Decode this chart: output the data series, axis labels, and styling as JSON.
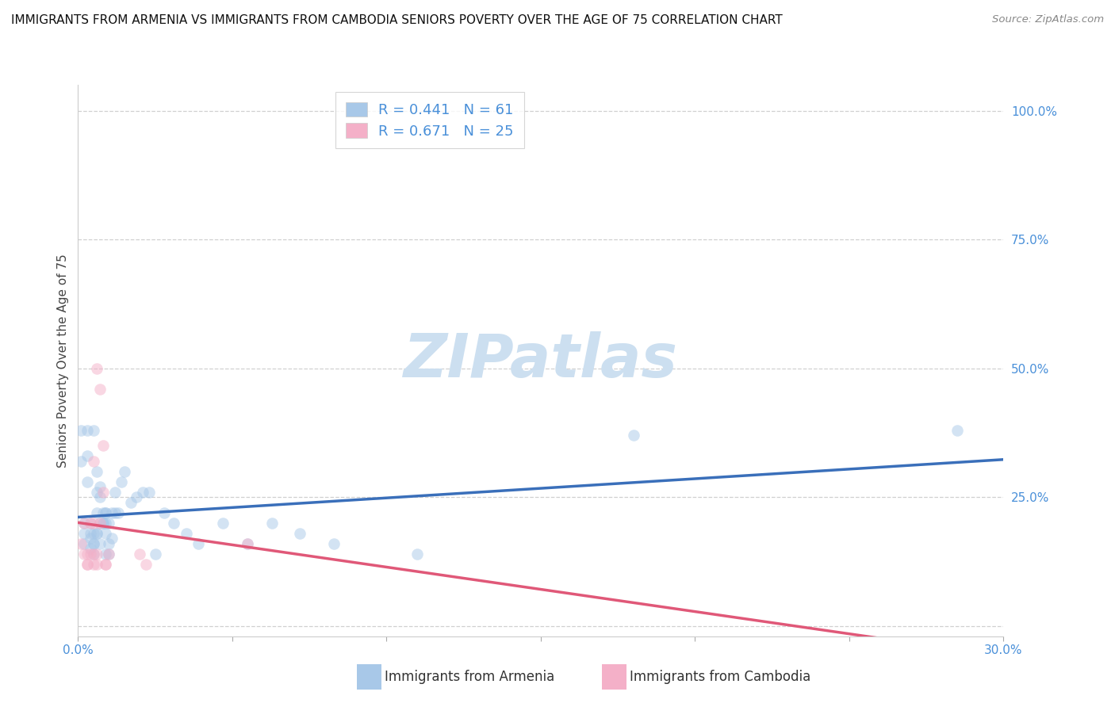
{
  "title": "IMMIGRANTS FROM ARMENIA VS IMMIGRANTS FROM CAMBODIA SENIORS POVERTY OVER THE AGE OF 75 CORRELATION CHART",
  "source": "Source: ZipAtlas.com",
  "ylabel": "Seniors Poverty Over the Age of 75",
  "xlabel_armenia": "Immigrants from Armenia",
  "xlabel_cambodia": "Immigrants from Cambodia",
  "armenia_color": "#a8c8e8",
  "cambodia_color": "#f4b0c8",
  "armenia_line_color": "#3a6fba",
  "cambodia_line_color": "#e05878",
  "R_armenia": 0.441,
  "N_armenia": 61,
  "R_cambodia": 0.671,
  "N_cambodia": 25,
  "xlim": [
    0.0,
    0.3
  ],
  "ylim": [
    -0.02,
    1.05
  ],
  "xticks": [
    0.0,
    0.05,
    0.1,
    0.15,
    0.2,
    0.25,
    0.3
  ],
  "yticks": [
    0.0,
    0.25,
    0.5,
    0.75,
    1.0
  ],
  "watermark": "ZIPatlas",
  "armenia_scatter": [
    [
      0.001,
      0.38
    ],
    [
      0.001,
      0.32
    ],
    [
      0.002,
      0.18
    ],
    [
      0.002,
      0.2
    ],
    [
      0.002,
      0.16
    ],
    [
      0.003,
      0.38
    ],
    [
      0.003,
      0.33
    ],
    [
      0.003,
      0.28
    ],
    [
      0.004,
      0.2
    ],
    [
      0.004,
      0.18
    ],
    [
      0.004,
      0.15
    ],
    [
      0.004,
      0.17
    ],
    [
      0.005,
      0.16
    ],
    [
      0.005,
      0.18
    ],
    [
      0.005,
      0.14
    ],
    [
      0.005,
      0.16
    ],
    [
      0.005,
      0.38
    ],
    [
      0.006,
      0.3
    ],
    [
      0.006,
      0.26
    ],
    [
      0.006,
      0.22
    ],
    [
      0.006,
      0.18
    ],
    [
      0.006,
      0.18
    ],
    [
      0.007,
      0.2
    ],
    [
      0.007,
      0.16
    ],
    [
      0.007,
      0.27
    ],
    [
      0.007,
      0.25
    ],
    [
      0.008,
      0.22
    ],
    [
      0.008,
      0.2
    ],
    [
      0.008,
      0.2
    ],
    [
      0.009,
      0.22
    ],
    [
      0.009,
      0.22
    ],
    [
      0.009,
      0.2
    ],
    [
      0.009,
      0.18
    ],
    [
      0.009,
      0.14
    ],
    [
      0.01,
      0.2
    ],
    [
      0.01,
      0.16
    ],
    [
      0.01,
      0.14
    ],
    [
      0.011,
      0.17
    ],
    [
      0.011,
      0.22
    ],
    [
      0.012,
      0.22
    ],
    [
      0.012,
      0.26
    ],
    [
      0.013,
      0.22
    ],
    [
      0.014,
      0.28
    ],
    [
      0.015,
      0.3
    ],
    [
      0.017,
      0.24
    ],
    [
      0.019,
      0.25
    ],
    [
      0.021,
      0.26
    ],
    [
      0.023,
      0.26
    ],
    [
      0.025,
      0.14
    ],
    [
      0.028,
      0.22
    ],
    [
      0.031,
      0.2
    ],
    [
      0.035,
      0.18
    ],
    [
      0.039,
      0.16
    ],
    [
      0.047,
      0.2
    ],
    [
      0.055,
      0.16
    ],
    [
      0.063,
      0.2
    ],
    [
      0.072,
      0.18
    ],
    [
      0.083,
      0.16
    ],
    [
      0.11,
      0.14
    ],
    [
      0.18,
      0.37
    ],
    [
      0.285,
      0.38
    ]
  ],
  "cambodia_scatter": [
    [
      0.001,
      0.16
    ],
    [
      0.002,
      0.14
    ],
    [
      0.002,
      0.2
    ],
    [
      0.003,
      0.12
    ],
    [
      0.003,
      0.14
    ],
    [
      0.003,
      0.12
    ],
    [
      0.004,
      0.2
    ],
    [
      0.004,
      0.14
    ],
    [
      0.005,
      0.2
    ],
    [
      0.005,
      0.32
    ],
    [
      0.005,
      0.14
    ],
    [
      0.005,
      0.12
    ],
    [
      0.006,
      0.14
    ],
    [
      0.006,
      0.5
    ],
    [
      0.006,
      0.12
    ],
    [
      0.007,
      0.2
    ],
    [
      0.007,
      0.46
    ],
    [
      0.008,
      0.35
    ],
    [
      0.008,
      0.26
    ],
    [
      0.009,
      0.12
    ],
    [
      0.009,
      0.12
    ],
    [
      0.01,
      0.14
    ],
    [
      0.02,
      0.14
    ],
    [
      0.022,
      0.12
    ],
    [
      0.055,
      0.16
    ]
  ],
  "title_fontsize": 11,
  "source_fontsize": 9.5,
  "label_fontsize": 11,
  "tick_fontsize": 11,
  "legend_fontsize": 13,
  "watermark_fontsize": 55,
  "watermark_color": "#ccdff0",
  "background_color": "#ffffff",
  "grid_color": "#d0d0d0",
  "grid_style": "--",
  "scatter_size": 110,
  "scatter_alpha": 0.5
}
